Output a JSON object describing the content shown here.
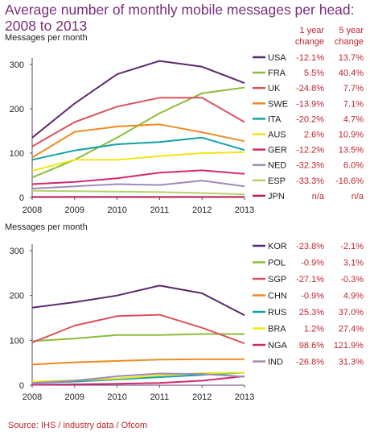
{
  "title_line1": "Average number of monthly mobile messages per head:",
  "title_line2": "2008 to 2013",
  "source": "Source: IHS / industry data / Ofcom",
  "legend_headers": {
    "one_year_l1": "1 year",
    "one_year_l2": "change",
    "five_year_l1": "5 year",
    "five_year_l2": "change"
  },
  "chart_data": [
    {
      "type": "line",
      "ylabel": "Messages per month",
      "x": [
        2008,
        2009,
        2010,
        2011,
        2012,
        2013
      ],
      "xlim": [
        2008,
        2013
      ],
      "ylim": [
        0,
        300
      ],
      "yticks": [
        0,
        100,
        200,
        300
      ],
      "grid": false,
      "legend_position": "right",
      "series": [
        {
          "name": "USA",
          "color": "#5b2a6e",
          "one_year": "-12.1%",
          "five_year": "13.7%",
          "values": [
            135,
            212,
            278,
            308,
            295,
            258
          ]
        },
        {
          "name": "FRA",
          "color": "#8dbd3c",
          "one_year": "5.5%",
          "five_year": "40.4%",
          "values": [
            45,
            85,
            135,
            190,
            235,
            248
          ]
        },
        {
          "name": "UK",
          "color": "#d9535e",
          "one_year": "-24.8%",
          "five_year": "7.7%",
          "values": [
            115,
            170,
            205,
            225,
            225,
            170
          ]
        },
        {
          "name": "SWE",
          "color": "#ef8a22",
          "one_year": "-13.9%",
          "five_year": "7.1%",
          "values": [
            90,
            148,
            160,
            165,
            147,
            127
          ]
        },
        {
          "name": "ITA",
          "color": "#14a1a6",
          "one_year": "-20.2%",
          "five_year": "4.7%",
          "values": [
            85,
            106,
            120,
            125,
            135,
            107
          ]
        },
        {
          "name": "AUS",
          "color": "#f2e614",
          "one_year": "2.6%",
          "five_year": "10.9%",
          "values": [
            60,
            85,
            85,
            93,
            100,
            102
          ]
        },
        {
          "name": "GER",
          "color": "#d12a6f",
          "one_year": "-12.2%",
          "five_year": "13.5%",
          "values": [
            30,
            35,
            43,
            56,
            61,
            53
          ]
        },
        {
          "name": "NED",
          "color": "#a08ab9",
          "one_year": "-32.3%",
          "five_year": "6.0%",
          "values": [
            20,
            25,
            30,
            28,
            38,
            25
          ]
        },
        {
          "name": "ESP",
          "color": "#b5d36b",
          "one_year": "-33.3%",
          "five_year": "-16.6%",
          "values": [
            15,
            14,
            13,
            12,
            10,
            7
          ]
        },
        {
          "name": "JPN",
          "color": "#b81f57",
          "one_year": "n/a",
          "five_year": "n/a",
          "values": [
            1,
            1,
            1,
            1,
            1,
            1
          ]
        }
      ]
    },
    {
      "type": "line",
      "ylabel": "Messages per month",
      "x": [
        2008,
        2009,
        2010,
        2011,
        2012,
        2013
      ],
      "xlim": [
        2008,
        2013
      ],
      "ylim": [
        0,
        300
      ],
      "yticks": [
        0,
        100,
        200,
        300
      ],
      "grid": false,
      "legend_position": "right",
      "series": [
        {
          "name": "KOR",
          "color": "#5b2a6e",
          "one_year": "-23.8%",
          "five_year": "-2.1%",
          "values": [
            173,
            185,
            200,
            222,
            205,
            156
          ]
        },
        {
          "name": "POL",
          "color": "#8dbd3c",
          "one_year": "-0.9%",
          "five_year": "3.1%",
          "values": [
            98,
            104,
            112,
            112,
            114,
            114
          ]
        },
        {
          "name": "SGP",
          "color": "#d9535e",
          "one_year": "-27.1%",
          "five_year": "-0.3%",
          "values": [
            95,
            133,
            154,
            157,
            128,
            93
          ]
        },
        {
          "name": "CHN",
          "color": "#ef8a22",
          "one_year": "-0.9%",
          "five_year": "4.9%",
          "values": [
            46,
            51,
            54,
            57,
            58,
            58
          ]
        },
        {
          "name": "RUS",
          "color": "#14a1a6",
          "one_year": "25.3%",
          "five_year": "37.0%",
          "values": [
            5,
            8,
            13,
            18,
            23,
            28
          ]
        },
        {
          "name": "BRA",
          "color": "#f2e614",
          "one_year": "1.2%",
          "five_year": "27.4%",
          "values": [
            8,
            11,
            15,
            22,
            27,
            28
          ]
        },
        {
          "name": "NGA",
          "color": "#d12a6f",
          "one_year": "98.6%",
          "five_year": "121.9%",
          "values": [
            1,
            2,
            3,
            5,
            10,
            20
          ]
        },
        {
          "name": "IND",
          "color": "#a08ab9",
          "one_year": "-26.8%",
          "five_year": "31.3%",
          "values": [
            5,
            10,
            20,
            26,
            25,
            19
          ]
        }
      ]
    }
  ]
}
